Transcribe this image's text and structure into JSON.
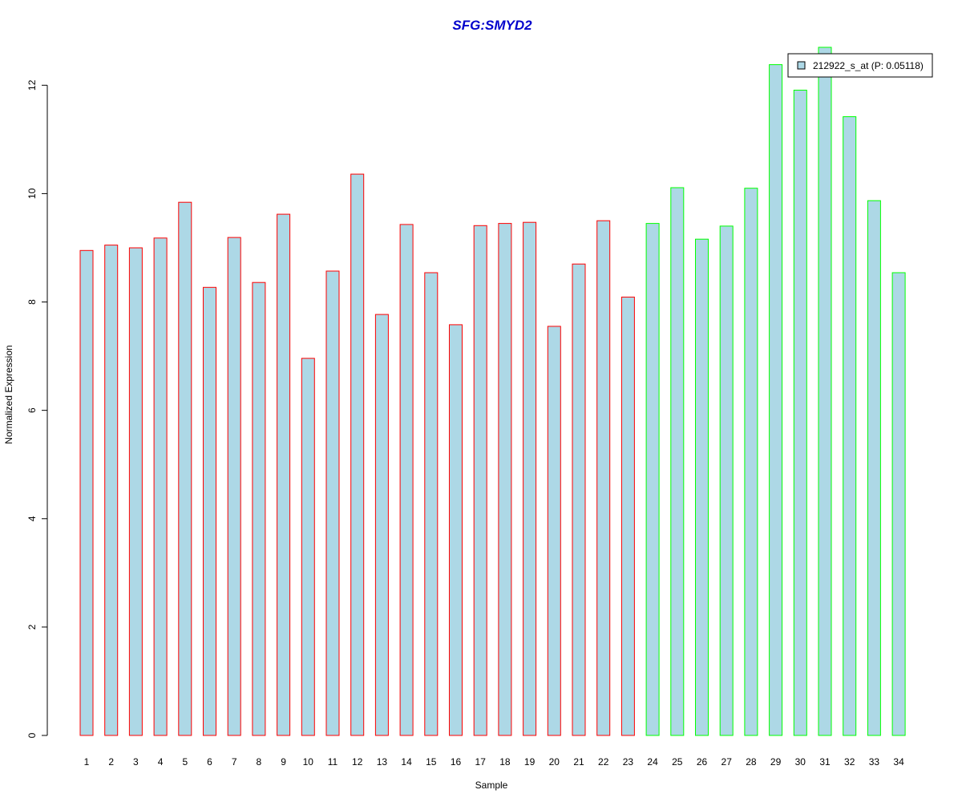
{
  "chart_data": {
    "type": "bar",
    "title": "SFG:SMYD2",
    "xlabel": "Sample",
    "ylabel": "Normalized Expression",
    "ylim": [
      0,
      12.7
    ],
    "yticks": [
      0,
      2,
      4,
      6,
      8,
      10,
      12
    ],
    "grid": false,
    "legend": {
      "entries": [
        "212922_s_at (P: 0.05118)"
      ],
      "placement": "top-right"
    },
    "categories": [
      "1",
      "2",
      "3",
      "4",
      "5",
      "6",
      "7",
      "8",
      "9",
      "10",
      "11",
      "12",
      "13",
      "14",
      "15",
      "16",
      "17",
      "18",
      "19",
      "20",
      "21",
      "22",
      "23",
      "24",
      "25",
      "26",
      "27",
      "28",
      "29",
      "30",
      "31",
      "32",
      "33",
      "34"
    ],
    "values": [
      8.95,
      9.05,
      9.0,
      9.18,
      9.84,
      8.27,
      9.19,
      8.36,
      9.62,
      6.96,
      8.57,
      10.36,
      7.77,
      9.43,
      8.54,
      7.58,
      9.41,
      9.45,
      9.47,
      7.55,
      8.7,
      9.5,
      8.09,
      9.45,
      10.11,
      9.16,
      9.4,
      10.1,
      12.38,
      11.91,
      12.7,
      11.42,
      9.87,
      8.54
    ],
    "bar_fill": "#add8e6",
    "bar_border_colors": [
      "#ff0000",
      "#ff0000",
      "#ff0000",
      "#ff0000",
      "#ff0000",
      "#ff0000",
      "#ff0000",
      "#ff0000",
      "#ff0000",
      "#ff0000",
      "#ff0000",
      "#ff0000",
      "#ff0000",
      "#ff0000",
      "#ff0000",
      "#ff0000",
      "#ff0000",
      "#ff0000",
      "#ff0000",
      "#ff0000",
      "#ff0000",
      "#ff0000",
      "#ff0000",
      "#00ff00",
      "#00ff00",
      "#00ff00",
      "#00ff00",
      "#00ff00",
      "#00ff00",
      "#00ff00",
      "#00ff00",
      "#00ff00",
      "#00ff00",
      "#00ff00"
    ],
    "title_color": "#0000cc"
  }
}
